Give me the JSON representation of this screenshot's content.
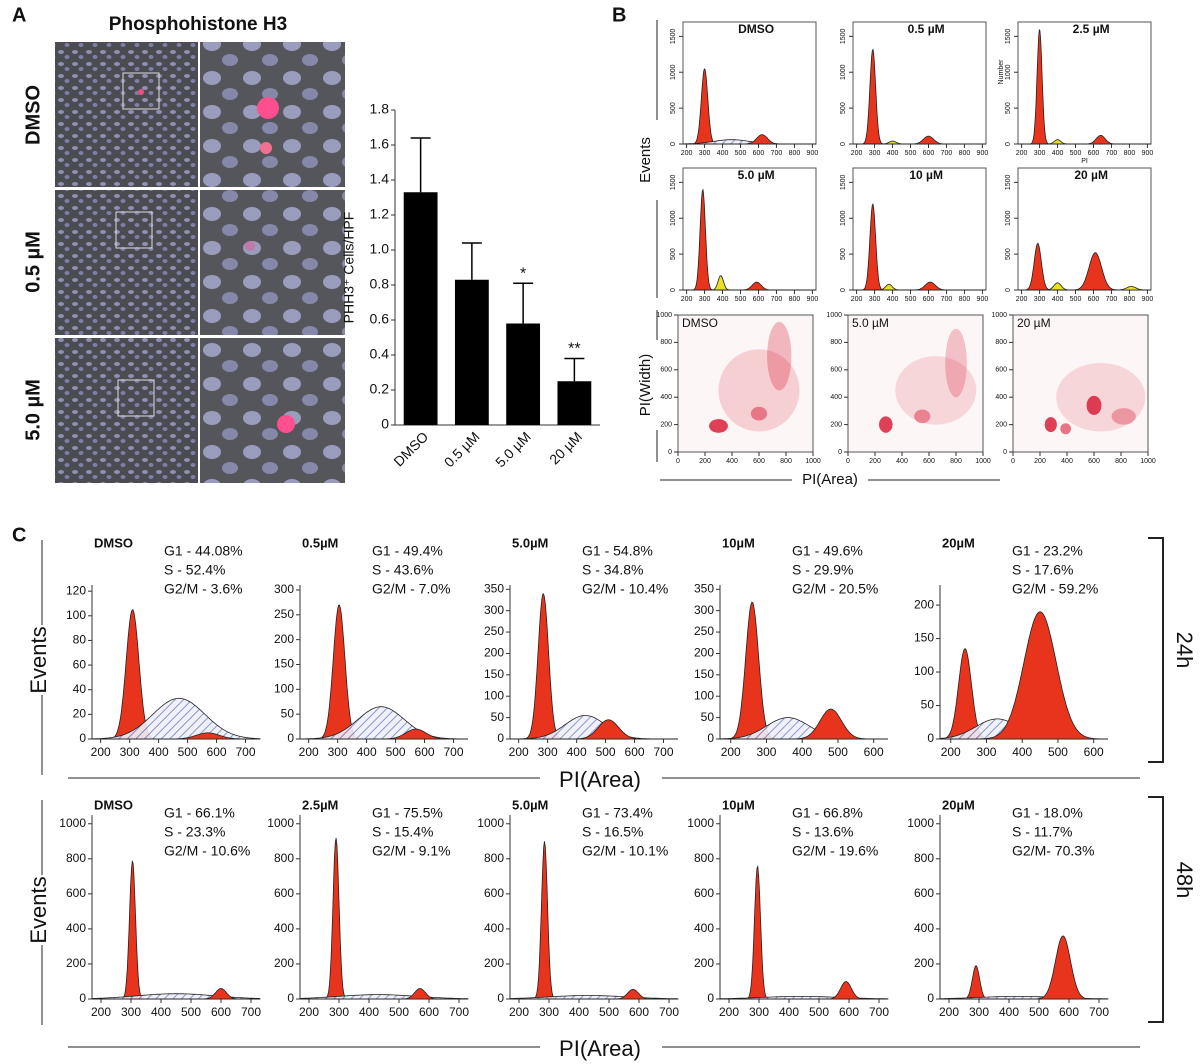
{
  "panel_labels": [
    "A",
    "B",
    "C"
  ],
  "micrograph": {
    "title": "Phosphohistone H3",
    "rows": [
      "DMSO",
      "0.5 µM",
      "5.0 µM"
    ]
  },
  "panel_b": {
    "ylabel": "Events",
    "density_ylabel": "PI(Width)",
    "xlabel": "PI(Area)"
  },
  "panel_c": {
    "rows": [
      {
        "label": "24h",
        "ylabel": "Events",
        "xlabel": "PI(Area)"
      },
      {
        "label": "48h",
        "ylabel": "Events",
        "xlabel": "PI(Area)"
      }
    ]
  },
  "chart_data": [
    {
      "type": "bar",
      "ylabel": "PHH3⁺ Cells/HPF",
      "categories": [
        "DMSO",
        "0.5 µM",
        "5.0 µM",
        "20 µM"
      ],
      "values": [
        1.33,
        0.83,
        0.58,
        0.25
      ],
      "errors": [
        0.31,
        0.21,
        0.23,
        0.13
      ],
      "significance": [
        null,
        null,
        "*",
        "**"
      ],
      "color": "#000000",
      "ylim": [
        0,
        1.8
      ],
      "yticks": [
        {
          "value": 0,
          "label": "0"
        },
        0.2,
        0.4,
        0.6,
        0.8,
        {
          "value": 1,
          "label": "1.0"
        },
        1.2,
        1.4,
        1.6,
        1.8
      ]
    },
    {
      "type": "histogram-fit",
      "title": "DMSO",
      "xlim": [
        180,
        920
      ],
      "ylim": [
        0,
        1700
      ],
      "xticks": [
        200,
        300,
        400,
        500,
        600,
        700,
        800,
        900
      ],
      "yticks": [
        0,
        500,
        1000,
        1500
      ],
      "peaks": [
        {
          "x": 300,
          "y": 1050,
          "sd": 18,
          "color": "#e8341c"
        },
        {
          "x": 450,
          "y": 60,
          "sd": 100,
          "color": "hatch"
        },
        {
          "x": 620,
          "y": 130,
          "sd": 30,
          "color": "#e8341c"
        }
      ]
    },
    {
      "type": "histogram-fit",
      "title": "0.5 µM",
      "xlim": [
        180,
        920
      ],
      "ylim": [
        0,
        1700
      ],
      "xticks": [
        200,
        300,
        400,
        500,
        600,
        700,
        800,
        900
      ],
      "yticks": [
        0,
        500,
        1000,
        1500
      ],
      "peaks": [
        {
          "x": 290,
          "y": 1320,
          "sd": 16,
          "color": "#e8341c"
        },
        {
          "x": 400,
          "y": 40,
          "sd": 20,
          "color": "#e8e020"
        },
        {
          "x": 600,
          "y": 110,
          "sd": 28,
          "color": "#e8341c"
        }
      ]
    },
    {
      "type": "histogram-fit",
      "title": "2.5 µM",
      "ylabel": "Number",
      "xlabel": "PI",
      "xlim": [
        180,
        920
      ],
      "ylim": [
        0,
        1700
      ],
      "xticks": [
        200,
        300,
        400,
        500,
        600,
        700,
        800,
        900
      ],
      "yticks": [
        0,
        500,
        1000,
        1500
      ],
      "peaks": [
        {
          "x": 300,
          "y": 1600,
          "sd": 14,
          "color": "#e8341c"
        },
        {
          "x": 400,
          "y": 60,
          "sd": 18,
          "color": "#e8e020"
        },
        {
          "x": 640,
          "y": 120,
          "sd": 25,
          "color": "#e8341c"
        }
      ]
    },
    {
      "type": "histogram-fit",
      "title": "5.0 µM",
      "xlim": [
        180,
        920
      ],
      "ylim": [
        0,
        1700
      ],
      "xticks": [
        200,
        300,
        400,
        500,
        600,
        700,
        800,
        900
      ],
      "yticks": [
        0,
        500,
        1000,
        1500
      ],
      "peaks": [
        {
          "x": 290,
          "y": 1400,
          "sd": 15,
          "color": "#e8341c"
        },
        {
          "x": 390,
          "y": 200,
          "sd": 15,
          "color": "#e8e020"
        },
        {
          "x": 590,
          "y": 110,
          "sd": 25,
          "color": "#e8341c"
        }
      ]
    },
    {
      "type": "histogram-fit",
      "title": "10 µM",
      "xlim": [
        180,
        920
      ],
      "ylim": [
        0,
        1700
      ],
      "xticks": [
        200,
        300,
        400,
        500,
        600,
        700,
        800,
        900
      ],
      "yticks": [
        0,
        500,
        1000,
        1500
      ],
      "peaks": [
        {
          "x": 290,
          "y": 1200,
          "sd": 16,
          "color": "#e8341c"
        },
        {
          "x": 380,
          "y": 80,
          "sd": 18,
          "color": "#e8e020"
        },
        {
          "x": 610,
          "y": 110,
          "sd": 28,
          "color": "#e8341c"
        }
      ]
    },
    {
      "type": "histogram-fit",
      "title": "20 µM",
      "xlim": [
        180,
        920
      ],
      "ylim": [
        0,
        1700
      ],
      "xticks": [
        200,
        300,
        400,
        500,
        600,
        700,
        800,
        900
      ],
      "yticks": [
        0,
        500,
        1000,
        1500
      ],
      "peaks": [
        {
          "x": 290,
          "y": 650,
          "sd": 20,
          "color": "#e8341c"
        },
        {
          "x": 400,
          "y": 100,
          "sd": 20,
          "color": "#e8e020"
        },
        {
          "x": 610,
          "y": 520,
          "sd": 35,
          "color": "#e8341c"
        },
        {
          "x": 810,
          "y": 50,
          "sd": 25,
          "color": "#e8e020"
        }
      ]
    },
    {
      "type": "density",
      "title": "DMSO",
      "xlim": [
        0,
        1000
      ],
      "ylim": [
        0,
        1000
      ],
      "xticks": [
        0,
        200,
        400,
        600,
        800,
        1000
      ],
      "yticks": [
        0,
        200,
        400,
        600,
        800,
        1000
      ],
      "blobs": [
        {
          "x": 600,
          "y": 450,
          "rx": 300,
          "ry": 300,
          "a": 0.18
        },
        {
          "x": 300,
          "y": 190,
          "rx": 70,
          "ry": 50,
          "a": 0.85
        },
        {
          "x": 600,
          "y": 280,
          "rx": 60,
          "ry": 50,
          "a": 0.5
        },
        {
          "x": 750,
          "y": 700,
          "rx": 90,
          "ry": 250,
          "a": 0.3
        }
      ]
    },
    {
      "type": "density",
      "title": "5.0 µM",
      "xlim": [
        0,
        1000
      ],
      "ylim": [
        0,
        1000
      ],
      "xticks": [
        0,
        200,
        400,
        600,
        800,
        1000
      ],
      "yticks": [
        0,
        200,
        400,
        600,
        800,
        1000
      ],
      "blobs": [
        {
          "x": 650,
          "y": 450,
          "rx": 300,
          "ry": 250,
          "a": 0.15
        },
        {
          "x": 280,
          "y": 200,
          "rx": 50,
          "ry": 60,
          "a": 0.85
        },
        {
          "x": 550,
          "y": 260,
          "rx": 60,
          "ry": 50,
          "a": 0.45
        },
        {
          "x": 800,
          "y": 650,
          "rx": 80,
          "ry": 250,
          "a": 0.25
        }
      ]
    },
    {
      "type": "density",
      "title": "20 µM",
      "xlim": [
        0,
        1000
      ],
      "ylim": [
        0,
        1000
      ],
      "xticks": [
        0,
        200,
        400,
        600,
        800,
        1000
      ],
      "yticks": [
        0,
        200,
        400,
        600,
        800,
        1000
      ],
      "blobs": [
        {
          "x": 650,
          "y": 400,
          "rx": 330,
          "ry": 250,
          "a": 0.15
        },
        {
          "x": 280,
          "y": 200,
          "rx": 45,
          "ry": 55,
          "a": 0.85
        },
        {
          "x": 390,
          "y": 170,
          "rx": 40,
          "ry": 40,
          "a": 0.6
        },
        {
          "x": 600,
          "y": 340,
          "rx": 55,
          "ry": 70,
          "a": 0.85
        },
        {
          "x": 820,
          "y": 260,
          "rx": 90,
          "ry": 60,
          "a": 0.35
        }
      ]
    },
    {
      "type": "histogram-fit",
      "title": "DMSO",
      "stats": [
        "G1 - 44.08%",
        "S - 52.4%",
        "G2/M - 3.6%"
      ],
      "xlim": [
        170,
        750
      ],
      "ylim": [
        0,
        125
      ],
      "xticks": [
        200,
        300,
        400,
        500,
        600,
        700
      ],
      "yticks": [
        0,
        20,
        40,
        60,
        80,
        100,
        120
      ],
      "peaks": [
        {
          "x": 310,
          "y": 105,
          "sd": 22,
          "color": "#e8341c"
        },
        {
          "x": 470,
          "y": 33,
          "sd": 90,
          "color": "hatch"
        },
        {
          "x": 570,
          "y": 5,
          "sd": 40,
          "color": "#e8341c"
        }
      ]
    },
    {
      "type": "histogram-fit",
      "title": "0.5µM",
      "stats": [
        "G1 - 49.4%",
        "S - 43.6%",
        "G2/M - 7.0%"
      ],
      "xlim": [
        170,
        750
      ],
      "ylim": [
        0,
        310
      ],
      "xticks": [
        200,
        300,
        400,
        500,
        600,
        700
      ],
      "yticks": [
        0,
        50,
        100,
        150,
        200,
        250,
        300
      ],
      "peaks": [
        {
          "x": 305,
          "y": 270,
          "sd": 20,
          "color": "#e8341c"
        },
        {
          "x": 450,
          "y": 65,
          "sd": 80,
          "color": "hatch"
        },
        {
          "x": 570,
          "y": 20,
          "sd": 35,
          "color": "#e8341c"
        }
      ]
    },
    {
      "type": "histogram-fit",
      "title": "5.0µM",
      "stats": [
        "G1 - 54.8%",
        "S - 34.8%",
        "G2/M - 10.4%"
      ],
      "xlim": [
        170,
        750
      ],
      "ylim": [
        0,
        360
      ],
      "xticks": [
        200,
        300,
        400,
        500,
        600,
        700
      ],
      "yticks": [
        0,
        50,
        100,
        150,
        200,
        250,
        300,
        350
      ],
      "peaks": [
        {
          "x": 285,
          "y": 340,
          "sd": 18,
          "color": "#e8341c"
        },
        {
          "x": 430,
          "y": 55,
          "sd": 70,
          "color": "hatch"
        },
        {
          "x": 510,
          "y": 45,
          "sd": 35,
          "color": "#e8341c"
        }
      ]
    },
    {
      "type": "histogram-fit",
      "title": "10µM",
      "stats": [
        "G1 - 49.6%",
        "S - 29.9%",
        "G2/M - 20.5%"
      ],
      "xlim": [
        170,
        640
      ],
      "ylim": [
        0,
        360
      ],
      "xticks": [
        200,
        300,
        400,
        500,
        600
      ],
      "yticks": [
        0,
        50,
        100,
        150,
        200,
        250,
        300,
        350
      ],
      "peaks": [
        {
          "x": 260,
          "y": 320,
          "sd": 18,
          "color": "#e8341c"
        },
        {
          "x": 360,
          "y": 50,
          "sd": 60,
          "color": "hatch"
        },
        {
          "x": 480,
          "y": 70,
          "sd": 30,
          "color": "#e8341c"
        }
      ]
    },
    {
      "type": "histogram-fit",
      "title": "20µM",
      "stats": [
        "G1 - 23.2%",
        "S - 17.6%",
        "G2/M - 59.2%"
      ],
      "xlim": [
        170,
        640
      ],
      "ylim": [
        0,
        230
      ],
      "xticks": [
        200,
        300,
        400,
        500,
        600
      ],
      "yticks": [
        0,
        50,
        100,
        150,
        200
      ],
      "peaks": [
        {
          "x": 240,
          "y": 135,
          "sd": 18,
          "color": "#e8341c"
        },
        {
          "x": 330,
          "y": 30,
          "sd": 60,
          "color": "hatch"
        },
        {
          "x": 450,
          "y": 190,
          "sd": 45,
          "color": "#e8341c"
        }
      ]
    },
    {
      "type": "histogram-fit",
      "title": "DMSO",
      "stats": [
        "G1 - 66.1%",
        "S - 23.3%",
        "G2/M - 10.6%"
      ],
      "xlim": [
        170,
        730
      ],
      "ylim": [
        0,
        1050
      ],
      "xticks": [
        200,
        300,
        400,
        500,
        600,
        700
      ],
      "yticks": [
        0,
        200,
        400,
        600,
        800,
        1000
      ],
      "peaks": [
        {
          "x": 305,
          "y": 790,
          "sd": 10,
          "color": "#e8341c"
        },
        {
          "x": 450,
          "y": 30,
          "sd": 130,
          "color": "hatch"
        },
        {
          "x": 600,
          "y": 60,
          "sd": 18,
          "color": "#e8341c"
        }
      ]
    },
    {
      "type": "histogram-fit",
      "title": "2.5µM",
      "stats": [
        "G1 - 75.5%",
        "S - 15.4%",
        "G2/M - 9.1%"
      ],
      "xlim": [
        170,
        730
      ],
      "ylim": [
        0,
        1050
      ],
      "xticks": [
        200,
        300,
        400,
        500,
        600,
        700
      ],
      "yticks": [
        0,
        200,
        400,
        600,
        800,
        1000
      ],
      "peaks": [
        {
          "x": 290,
          "y": 920,
          "sd": 10,
          "color": "#e8341c"
        },
        {
          "x": 430,
          "y": 25,
          "sd": 130,
          "color": "hatch"
        },
        {
          "x": 570,
          "y": 60,
          "sd": 18,
          "color": "#e8341c"
        }
      ]
    },
    {
      "type": "histogram-fit",
      "title": "5.0µM",
      "stats": [
        "G1 - 73.4%",
        "S - 16.5%",
        "G2/M - 10.1%"
      ],
      "xlim": [
        170,
        730
      ],
      "ylim": [
        0,
        1050
      ],
      "xticks": [
        200,
        300,
        400,
        500,
        600,
        700
      ],
      "yticks": [
        0,
        200,
        400,
        600,
        800,
        1000
      ],
      "peaks": [
        {
          "x": 285,
          "y": 900,
          "sd": 10,
          "color": "#e8341c"
        },
        {
          "x": 430,
          "y": 20,
          "sd": 130,
          "color": "hatch"
        },
        {
          "x": 580,
          "y": 55,
          "sd": 18,
          "color": "#e8341c"
        }
      ]
    },
    {
      "type": "histogram-fit",
      "title": "10µM",
      "stats": [
        "G1 - 66.8%",
        "S - 13.6%",
        "G2/M - 19.6%"
      ],
      "xlim": [
        170,
        730
      ],
      "ylim": [
        0,
        1050
      ],
      "xticks": [
        200,
        300,
        400,
        500,
        600,
        700
      ],
      "yticks": [
        0,
        200,
        400,
        600,
        800,
        1000
      ],
      "peaks": [
        {
          "x": 295,
          "y": 760,
          "sd": 10,
          "color": "#e8341c"
        },
        {
          "x": 440,
          "y": 15,
          "sd": 130,
          "color": "hatch"
        },
        {
          "x": 590,
          "y": 100,
          "sd": 18,
          "color": "#e8341c"
        }
      ]
    },
    {
      "type": "histogram-fit",
      "title": "20µM",
      "stats": [
        "G1 - 18.0%",
        "S - 11.7%",
        "G2/M- 70.3%"
      ],
      "xlim": [
        170,
        730
      ],
      "ylim": [
        0,
        1050
      ],
      "xticks": [
        200,
        300,
        400,
        500,
        600,
        700
      ],
      "yticks": [
        0,
        200,
        400,
        600,
        800,
        1000
      ],
      "peaks": [
        {
          "x": 290,
          "y": 190,
          "sd": 12,
          "color": "#e8341c"
        },
        {
          "x": 430,
          "y": 15,
          "sd": 130,
          "color": "hatch"
        },
        {
          "x": 580,
          "y": 360,
          "sd": 25,
          "color": "#e8341c"
        }
      ]
    }
  ]
}
